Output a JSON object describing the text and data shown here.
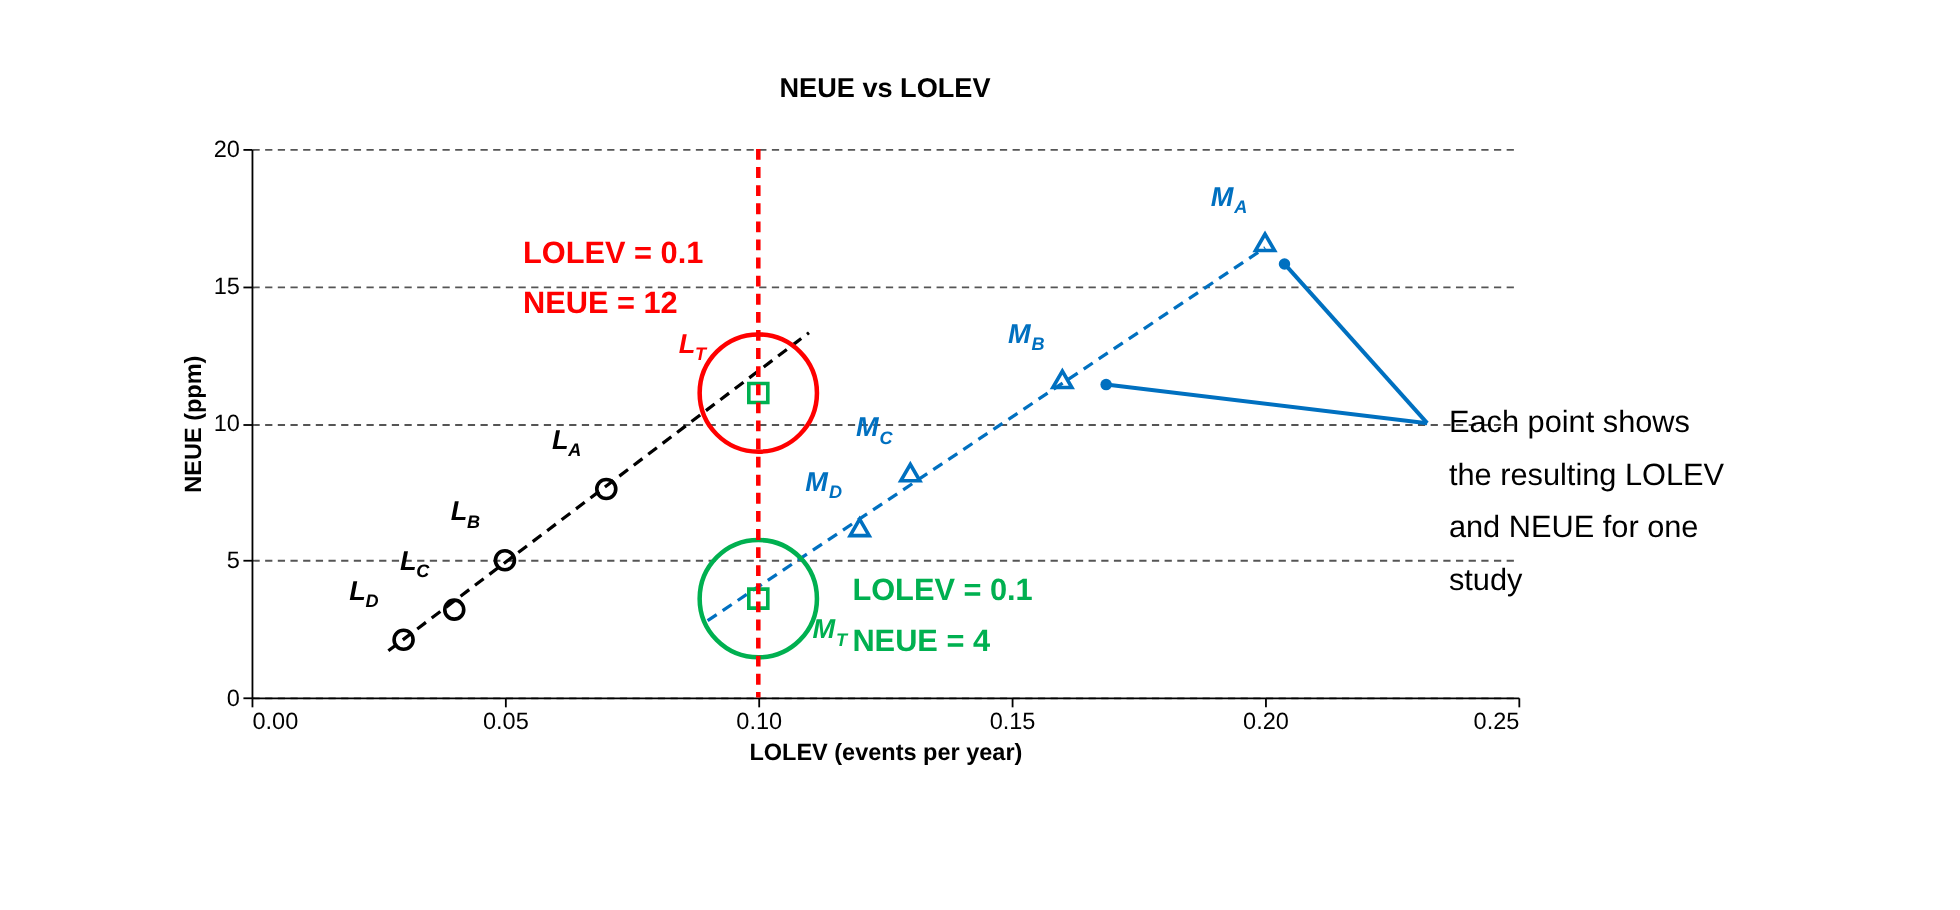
{
  "chart_data": {
    "type": "scatter",
    "title": "NEUE vs LOLEV",
    "xlabel": "LOLEV (events per year)",
    "ylabel": "NEUE (ppm)",
    "xlim": [
      0,
      0.25
    ],
    "xticks": [
      {
        "value": 0,
        "label": "0.00"
      },
      {
        "value": 0.05,
        "label": "0.05"
      },
      {
        "value": 0.1,
        "label": "0.10"
      },
      {
        "value": 0.15,
        "label": "0.15"
      },
      {
        "value": 0.2,
        "label": "0.20"
      },
      {
        "value": 0.25,
        "label": "0.25"
      }
    ],
    "ylim": [
      0,
      20
    ],
    "yticks": [
      0,
      5,
      10,
      15,
      20
    ],
    "grid": "y",
    "series": [
      {
        "type": "line",
        "color": "#000000",
        "line_style": "dashed",
        "marker": "none",
        "x": [
          0.027,
          0.11
        ],
        "values": [
          1.7,
          13.3
        ]
      },
      {
        "type": "line",
        "color": "#0070c0",
        "line_style": "dashed",
        "marker": "none",
        "x": [
          0.09,
          0.2
        ],
        "values": [
          2.8,
          16.4
        ]
      },
      {
        "type": "scatter",
        "color": "#000000",
        "marker": "circle",
        "x": [
          0.03,
          0.04,
          0.05,
          0.07
        ],
        "values": [
          2.1,
          3.2,
          5.0,
          7.6
        ],
        "value_labels": [
          "L$_{D}$",
          "L$_{C}$",
          "L$_{B}$",
          "L$_{A}$"
        ]
      },
      {
        "type": "scatter",
        "color": "#0070c0",
        "marker": "triangle",
        "x": [
          0.12,
          0.13,
          0.16,
          0.2
        ],
        "values": [
          6.2,
          8.2,
          11.6,
          16.6
        ],
        "value_labels": [
          "M$_{D}$",
          "M$_{C}$",
          "M$_{B}$",
          "M$_{A}$"
        ]
      },
      {
        "type": "scatter",
        "color": "#00b050",
        "marker": "square",
        "x": [
          0.1,
          0.1
        ],
        "values": [
          11.1,
          3.6
        ],
        "value_labels": [
          "L$_{T}$",
          "M$_{T}$"
        ]
      }
    ],
    "ref_lines": [
      {
        "axis": "x",
        "value": 0.1,
        "color": "#ff0000",
        "line_style": "dashed"
      }
    ],
    "annotations": [
      "LOLEV = 0.1\nNEUE = 12",
      "LOLEV = 0.1\nNEUE = 4",
      "Each point shows\nthe resulting LOLEV\nand NEUE for one\nstudy"
    ]
  }
}
